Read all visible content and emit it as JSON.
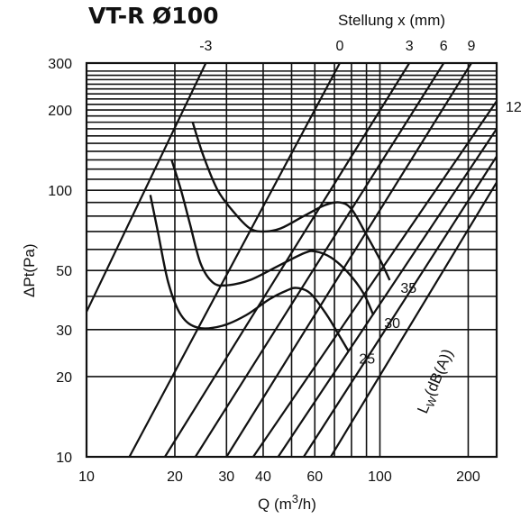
{
  "chart_data": {
    "type": "line",
    "title": "VT-R Ø100",
    "xlabel": "Q (m3/h)",
    "xlabel_parts": {
      "main": "Q (m",
      "sup": "3",
      "tail": "/h)"
    },
    "ylabel": "ΔPt(Pa)",
    "setting_label": "Stellung x (mm)",
    "noise_label": {
      "main": "L",
      "sub": "W",
      "tail": "(dB(A))"
    },
    "x_scale": "log",
    "y_scale": "log",
    "xlim": [
      10,
      250
    ],
    "ylim": [
      10,
      300
    ],
    "x_ticks": [
      10,
      20,
      30,
      40,
      60,
      100,
      200
    ],
    "y_ticks": [
      10,
      20,
      30,
      50,
      100,
      200,
      300
    ],
    "grid": true,
    "setting_lines": [
      {
        "name": "-3",
        "points": [
          [
            10,
            35
          ],
          [
            25.5,
            300
          ]
        ]
      },
      {
        "name": "0",
        "points": [
          [
            14,
            10
          ],
          [
            73,
            300
          ]
        ]
      },
      {
        "name": "3",
        "points": [
          [
            18.5,
            10
          ],
          [
            126,
            300
          ]
        ]
      },
      {
        "name": "6",
        "points": [
          [
            23.5,
            10
          ],
          [
            165,
            300
          ]
        ]
      },
      {
        "name": "9",
        "points": [
          [
            30,
            10
          ],
          [
            205,
            300
          ]
        ]
      },
      {
        "name": "12",
        "points": [
          [
            37,
            10
          ],
          [
            250,
            216
          ]
        ]
      },
      {
        "name": "",
        "points": [
          [
            45,
            10
          ],
          [
            250,
            170
          ]
        ]
      },
      {
        "name": "",
        "points": [
          [
            55,
            10
          ],
          [
            250,
            134
          ]
        ]
      },
      {
        "name": "",
        "points": [
          [
            68,
            10
          ],
          [
            250,
            107
          ]
        ]
      }
    ],
    "series": [
      {
        "name": "35",
        "points": [
          [
            23,
            180
          ],
          [
            25,
            135
          ],
          [
            28,
            100
          ],
          [
            32,
            82
          ],
          [
            36,
            72
          ],
          [
            40,
            70
          ],
          [
            46,
            72
          ],
          [
            55,
            80
          ],
          [
            65,
            88
          ],
          [
            73,
            90
          ],
          [
            80,
            85
          ],
          [
            90,
            68
          ],
          [
            100,
            55
          ],
          [
            108,
            46
          ]
        ]
      },
      {
        "name": "30",
        "points": [
          [
            19.5,
            130
          ],
          [
            21,
            100
          ],
          [
            22.5,
            75
          ],
          [
            24.5,
            53
          ],
          [
            27,
            45
          ],
          [
            30,
            44
          ],
          [
            36,
            46
          ],
          [
            45,
            52
          ],
          [
            55,
            58
          ],
          [
            60,
            59
          ],
          [
            68,
            56
          ],
          [
            78,
            49
          ],
          [
            88,
            41
          ],
          [
            95,
            34
          ]
        ]
      },
      {
        "name": "25",
        "points": [
          [
            16.5,
            96
          ],
          [
            17.5,
            70
          ],
          [
            19,
            45
          ],
          [
            21,
            34
          ],
          [
            24,
            30.5
          ],
          [
            29,
            31
          ],
          [
            35,
            34
          ],
          [
            42,
            39
          ],
          [
            48,
            42
          ],
          [
            52,
            43
          ],
          [
            58,
            41
          ],
          [
            66,
            34
          ],
          [
            72,
            29
          ],
          [
            78,
            25
          ]
        ]
      }
    ]
  }
}
